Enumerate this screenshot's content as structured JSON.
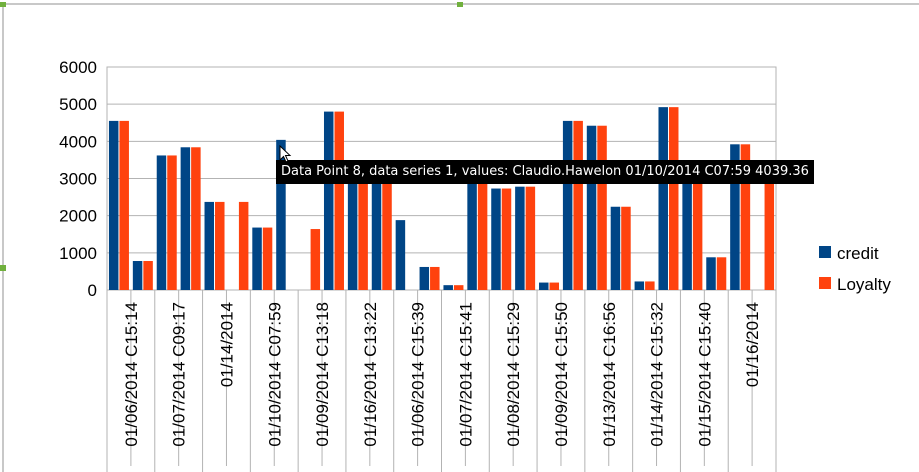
{
  "colors": {
    "credit": "#004586",
    "loyalty": "#ff420e",
    "grid": "#b3b3b3",
    "selection_handle": "#70b03d"
  },
  "tooltip": {
    "text": "Data Point 8, data series 1, values: Claudio.Hawelon 01/10/2014 C07:59 4039.36"
  },
  "legend": {
    "items": [
      {
        "label": "credit",
        "color": "#004586"
      },
      {
        "label": "Loyalty",
        "color": "#ff420e"
      }
    ],
    "position": "right"
  },
  "chart_data": {
    "type": "bar",
    "title": "",
    "xlabel": "",
    "ylabel": "",
    "ylim": [
      0,
      6000
    ],
    "yticks": [
      0,
      1000,
      2000,
      3000,
      4000,
      5000,
      6000
    ],
    "grid": true,
    "category_labels": [
      "01/06/2014 C15:14",
      "01/07/2014 C09:17",
      "01/14/2014",
      "01/10/2014 C07:59",
      "01/09/2014 C13:18",
      "01/16/2014 C13:22",
      "01/06/2014 C15:39",
      "01/07/2014 C15:41",
      "01/08/2014 C15:29",
      "01/09/2014 C15:50",
      "01/13/2014 C16:56",
      "01/14/2014 C15:32",
      "01/15/2014 C15:40",
      "01/16/2014"
    ],
    "series": [
      {
        "name": "credit",
        "values": [
          4550,
          780,
          3620,
          3840,
          2370,
          0,
          1680,
          4039.36,
          0,
          4800,
          3100,
          3100,
          1880,
          620,
          130,
          3100,
          2730,
          2780,
          200,
          4550,
          4420,
          2240,
          230,
          4920,
          3100,
          880,
          3920,
          0
        ]
      },
      {
        "name": "Loyalty",
        "values": [
          4550,
          780,
          3620,
          3840,
          2370,
          2370,
          1680,
          0,
          1640,
          4800,
          3100,
          3100,
          0,
          620,
          130,
          3100,
          2730,
          2780,
          200,
          4550,
          4420,
          2240,
          230,
          4920,
          3100,
          880,
          3920,
          3100
        ]
      }
    ]
  }
}
